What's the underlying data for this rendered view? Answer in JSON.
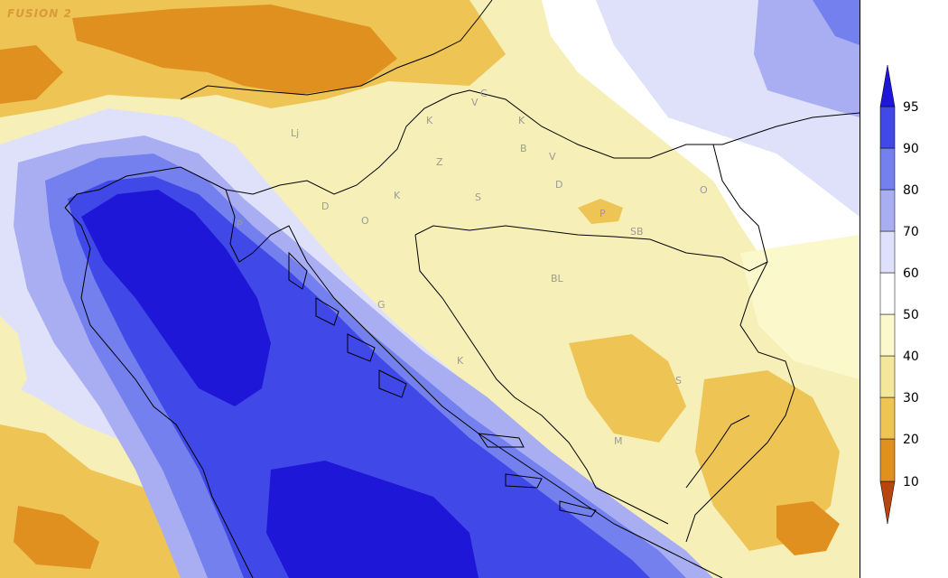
{
  "brand": "FUSION 2",
  "place_labels": [
    {
      "text": "Lj"
    },
    {
      "text": "C"
    },
    {
      "text": "V"
    },
    {
      "text": "K"
    },
    {
      "text": "K"
    },
    {
      "text": "B"
    },
    {
      "text": "V"
    },
    {
      "text": "Z"
    },
    {
      "text": "D"
    },
    {
      "text": "K"
    },
    {
      "text": "S"
    },
    {
      "text": "D"
    },
    {
      "text": "O"
    },
    {
      "text": "O"
    },
    {
      "text": "P"
    },
    {
      "text": "P"
    },
    {
      "text": "SB"
    },
    {
      "text": "BL"
    },
    {
      "text": "G"
    },
    {
      "text": "K"
    },
    {
      "text": "S"
    },
    {
      "text": "M"
    }
  ],
  "legend": {
    "colors": [
      "#b8450e",
      "#e0901f",
      "#eec455",
      "#f3e79a",
      "#fbf8cc",
      "#ffffff",
      "#dfe1fb",
      "#a9aef3",
      "#7480ee",
      "#4049e8",
      "#1f17d8"
    ],
    "labels": [
      "10",
      "20",
      "30",
      "40",
      "50",
      "60",
      "70",
      "80",
      "90",
      "95"
    ]
  }
}
